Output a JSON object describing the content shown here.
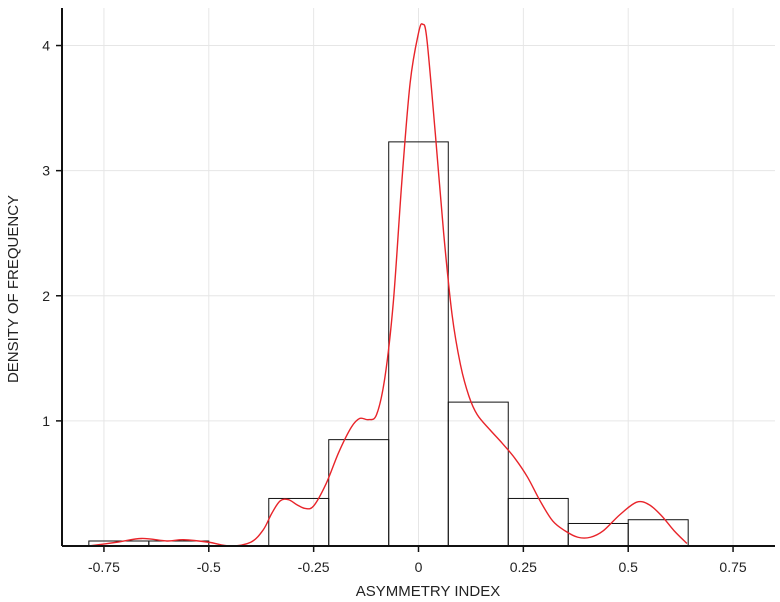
{
  "chart_data": {
    "type": "histogram",
    "title": "",
    "xlabel": "ASYMMETRY INDEX",
    "ylabel": "DENSITY OF FREQUENCY",
    "xlim": [
      -0.85,
      0.85
    ],
    "ylim": [
      0,
      4.3
    ],
    "x_ticks": [
      -0.75,
      -0.5,
      -0.25,
      0,
      0.25,
      0.5,
      0.75
    ],
    "x_tick_labels": [
      "-0.75",
      "-0.5",
      "-0.25",
      "0",
      "0.25",
      "0.5",
      "0.75"
    ],
    "y_ticks": [
      1,
      2,
      3,
      4
    ],
    "y_tick_labels": [
      "1",
      "2",
      "3",
      "4"
    ],
    "grid": true,
    "legend": "none",
    "bins": [
      {
        "x0": -0.786,
        "x1": -0.643,
        "density": 0.04
      },
      {
        "x0": -0.643,
        "x1": -0.5,
        "density": 0.04
      },
      {
        "x0": -0.357,
        "x1": -0.214,
        "density": 0.38
      },
      {
        "x0": -0.214,
        "x1": -0.071,
        "density": 0.85
      },
      {
        "x0": -0.071,
        "x1": 0.071,
        "density": 3.23
      },
      {
        "x0": 0.071,
        "x1": 0.214,
        "density": 1.15
      },
      {
        "x0": 0.214,
        "x1": 0.357,
        "density": 0.38
      },
      {
        "x0": 0.357,
        "x1": 0.5,
        "density": 0.18
      },
      {
        "x0": 0.5,
        "x1": 0.643,
        "density": 0.21
      }
    ],
    "density_curve": {
      "color": "#e8242a",
      "points": [
        [
          -0.786,
          0.0
        ],
        [
          -0.72,
          0.03
        ],
        [
          -0.66,
          0.06
        ],
        [
          -0.6,
          0.04
        ],
        [
          -0.56,
          0.05
        ],
        [
          -0.5,
          0.03
        ],
        [
          -0.45,
          0.0
        ],
        [
          -0.4,
          0.03
        ],
        [
          -0.37,
          0.13
        ],
        [
          -0.35,
          0.26
        ],
        [
          -0.33,
          0.36
        ],
        [
          -0.31,
          0.37
        ],
        [
          -0.29,
          0.33
        ],
        [
          -0.27,
          0.3
        ],
        [
          -0.25,
          0.32
        ],
        [
          -0.22,
          0.5
        ],
        [
          -0.19,
          0.75
        ],
        [
          -0.16,
          0.95
        ],
        [
          -0.14,
          1.02
        ],
        [
          -0.12,
          1.01
        ],
        [
          -0.1,
          1.05
        ],
        [
          -0.08,
          1.35
        ],
        [
          -0.06,
          1.95
        ],
        [
          -0.04,
          2.9
        ],
        [
          -0.02,
          3.7
        ],
        [
          0.0,
          4.1
        ],
        [
          0.01,
          4.17
        ],
        [
          0.02,
          4.05
        ],
        [
          0.04,
          3.3
        ],
        [
          0.06,
          2.5
        ],
        [
          0.08,
          1.85
        ],
        [
          0.1,
          1.45
        ],
        [
          0.12,
          1.2
        ],
        [
          0.14,
          1.05
        ],
        [
          0.17,
          0.93
        ],
        [
          0.2,
          0.82
        ],
        [
          0.23,
          0.7
        ],
        [
          0.26,
          0.55
        ],
        [
          0.29,
          0.36
        ],
        [
          0.32,
          0.2
        ],
        [
          0.35,
          0.12
        ],
        [
          0.38,
          0.07
        ],
        [
          0.41,
          0.07
        ],
        [
          0.44,
          0.12
        ],
        [
          0.48,
          0.25
        ],
        [
          0.52,
          0.35
        ],
        [
          0.55,
          0.33
        ],
        [
          0.58,
          0.24
        ],
        [
          0.61,
          0.12
        ],
        [
          0.64,
          0.02
        ]
      ]
    }
  }
}
